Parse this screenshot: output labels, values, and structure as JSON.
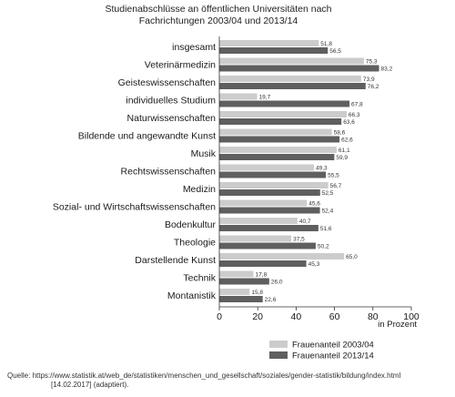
{
  "chart_data": {
    "type": "bar",
    "orientation": "horizontal",
    "title_lines": [
      "Studienabschlüsse an öffentlichen Universitäten nach",
      "Fachrichtungen 2003/04 und 2013/14"
    ],
    "xlabel": "in Prozent",
    "ylabel": "",
    "xlim": [
      0,
      100
    ],
    "xticks": [
      0,
      20,
      40,
      60,
      80,
      100
    ],
    "grid": false,
    "legend_position": "bottom-right",
    "categories": [
      "insgesamt",
      "Veterinärmedizin",
      "Geisteswissenschaften",
      "individuelles Studium",
      "Naturwissenschaften",
      "Bildende und angewandte Kunst",
      "Musik",
      "Rechtswissenschaften",
      "Medizin",
      "Sozial- und Wirtschaftswissenschaften",
      "Bodenkultur",
      "Theologie",
      "Darstellende Kunst",
      "Technik",
      "Montanistik"
    ],
    "series": [
      {
        "name": "Frauenanteil 2003/04",
        "color": "#cccccc",
        "values": [
          51.8,
          75.3,
          73.9,
          19.7,
          66.3,
          58.6,
          61.1,
          49.3,
          56.7,
          45.6,
          40.7,
          37.5,
          65.0,
          17.8,
          15.8
        ],
        "labels": [
          "51,8",
          "75,3",
          "73,9",
          "19,7",
          "66,3",
          "58,6",
          "61,1",
          "49,3",
          "56,7",
          "45,6",
          "40,7",
          "37,5",
          "65,0",
          "17,8",
          "15,8"
        ]
      },
      {
        "name": "Frauenanteil 2013/14",
        "color": "#5f5f5f",
        "values": [
          56.5,
          83.2,
          76.2,
          67.8,
          63.6,
          62.6,
          59.9,
          55.5,
          52.5,
          52.4,
          51.6,
          50.2,
          45.3,
          26.0,
          22.6
        ],
        "labels": [
          "56,5",
          "83,2",
          "76,2",
          "67,8",
          "63,6",
          "62,6",
          "59,9",
          "55,5",
          "52,5",
          "52,4",
          "51,6",
          "50,2",
          "45,3",
          "26,0",
          "22,6"
        ]
      }
    ]
  },
  "source": {
    "line1": "Quelle: https://www.statistik.at/web_de/statistiken/menschen_und_gesellschaft/soziales/gender-statistik/bildung/index.html",
    "line2": "[14.02.2017] (adaptiert)."
  }
}
